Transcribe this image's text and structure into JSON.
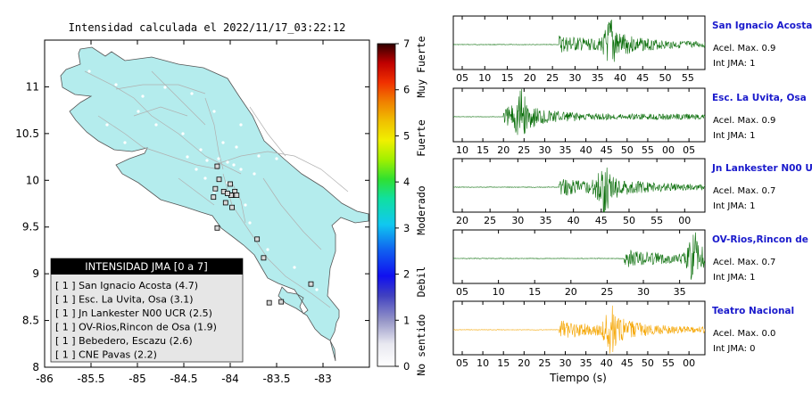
{
  "map": {
    "title": "Intensidad calculada el 2022/11/17_03:22:12",
    "x_ticks": [
      "-86",
      "-85.5",
      "-85",
      "-84.5",
      "-84",
      "-83.5",
      "-83"
    ],
    "y_ticks": [
      "8",
      "8.5",
      "9",
      "9.5",
      "10",
      "10.5",
      "11"
    ],
    "xlim": [
      -86,
      -82.5
    ],
    "ylim": [
      8,
      11.5
    ],
    "land_color": "#b4eced",
    "legend": {
      "title": "INTENSIDAD JMA [0 a 7]",
      "items": [
        "[ 1 ]  San Ignacio Acosta (4.7)",
        "[ 1 ]  Esc. La Uvita, Osa (3.1)",
        "[ 1 ]  Jn Lankester N00 UCR (2.5)",
        "[ 1 ]  OV-Rios,Rincon de Osa (1.9)",
        "[ 1 ]  Bebedero, Escazu (2.6)",
        "[ 1 ]  CNE Pavas (2.2)"
      ]
    },
    "stations": [
      {
        "lon": -84.14,
        "lat": 10.15
      },
      {
        "lon": -84.12,
        "lat": 10.01
      },
      {
        "lon": -84.16,
        "lat": 9.91
      },
      {
        "lon": -84.18,
        "lat": 9.82
      },
      {
        "lon": -84.07,
        "lat": 9.88
      },
      {
        "lon": -84.05,
        "lat": 9.76
      },
      {
        "lon": -84.0,
        "lat": 9.96
      },
      {
        "lon": -83.95,
        "lat": 9.88
      },
      {
        "lon": -83.97,
        "lat": 9.84
      },
      {
        "lon": -83.99,
        "lat": 9.84
      },
      {
        "lon": -83.93,
        "lat": 9.84
      },
      {
        "lon": -84.03,
        "lat": 9.86
      },
      {
        "lon": -83.98,
        "lat": 9.71
      },
      {
        "lon": -84.14,
        "lat": 9.49
      },
      {
        "lon": -83.71,
        "lat": 9.37
      },
      {
        "lon": -83.64,
        "lat": 9.17
      },
      {
        "lon": -83.45,
        "lat": 8.7
      },
      {
        "lon": -83.58,
        "lat": 8.69
      },
      {
        "lon": -83.13,
        "lat": 8.89
      }
    ]
  },
  "colorbar": {
    "ticks": [
      "0",
      "1",
      "2",
      "3",
      "4",
      "5",
      "6",
      "7"
    ],
    "categories": [
      "No sentido",
      "Debil",
      "Moderado",
      "Fuerte",
      "Muy Fuerte"
    ]
  },
  "panels": [
    {
      "station": "San Ignacio Acosta",
      "acel": "Acel. Max. 0.9",
      "int": "Int JMA: 1",
      "ticks": [
        "05",
        "10",
        "15",
        "20",
        "25",
        "30",
        "35",
        "40",
        "45",
        "50",
        "55"
      ],
      "color": "#0a6e0a",
      "onset": 0.42,
      "peak": 0.63
    },
    {
      "station": "Esc. La Uvita, Osa",
      "acel": "Acel. Max. 0.9",
      "int": "Int JMA: 1",
      "ticks": [
        "10",
        "15",
        "20",
        "25",
        "30",
        "35",
        "40",
        "45",
        "50",
        "55",
        "00",
        "05"
      ],
      "color": "#0a6e0a",
      "onset": 0.2,
      "peak": 0.27
    },
    {
      "station": "Jn Lankester N00 UCR",
      "acel": "Acel. Max. 0.7",
      "int": "Int JMA: 1",
      "ticks": [
        "20",
        "25",
        "30",
        "35",
        "40",
        "45",
        "50",
        "55",
        "00"
      ],
      "color": "#0a6e0a",
      "onset": 0.42,
      "peak": 0.6
    },
    {
      "station": "OV-Rios,Rincon de Osa",
      "acel": "Acel. Max. 0.7",
      "int": "Int JMA: 1",
      "ticks": [
        "05",
        "10",
        "15",
        "20",
        "25",
        "30",
        "35"
      ],
      "color": "#0a6e0a",
      "onset": 0.68,
      "peak": 0.96
    },
    {
      "station": "Teatro Nacional",
      "acel": "Acel. Max. 0.0",
      "int": "Int JMA: 0",
      "ticks": [
        "05",
        "10",
        "15",
        "20",
        "25",
        "30",
        "35",
        "40",
        "45",
        "50",
        "55",
        "00"
      ],
      "color": "#f5a500",
      "onset": 0.42,
      "peak": 0.63
    }
  ],
  "xlabel": "Tiempo (s)",
  "station_label_color": "#1a1acc"
}
